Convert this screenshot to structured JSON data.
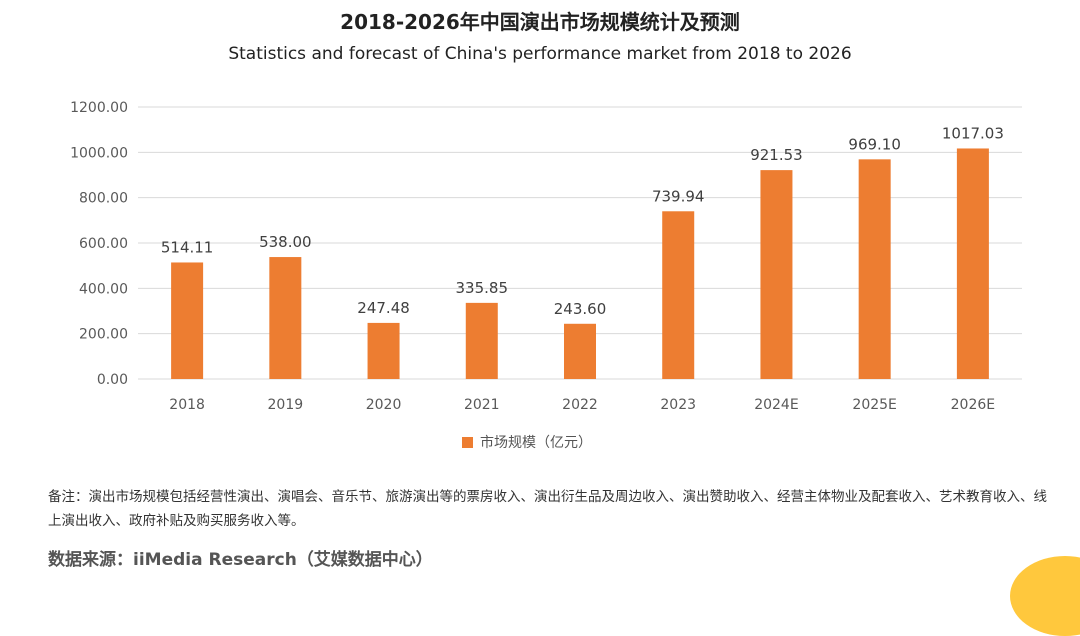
{
  "colors": {
    "bar": "#ED7D31",
    "grid": "#D9D9D9",
    "tick_text": "#595959",
    "label_text": "#404040",
    "corner_accent": "#FFC83D"
  },
  "chart_data": {
    "type": "bar",
    "title": "2018-2026年中国演出市场规模统计及预测",
    "subtitle": "Statistics and forecast of China's performance market from 2018 to 2026",
    "categories": [
      "2018",
      "2019",
      "2020",
      "2021",
      "2022",
      "2023",
      "2024E",
      "2025E",
      "2026E"
    ],
    "series": [
      {
        "name": "市场规模（亿元）",
        "values": [
          514.11,
          538.0,
          247.48,
          335.85,
          243.6,
          739.94,
          921.53,
          969.1,
          1017.03
        ],
        "value_labels": [
          "514.11",
          "538.00",
          "247.48",
          "335.85",
          "243.60",
          "739.94",
          "921.53",
          "969.10",
          "1017.03"
        ]
      }
    ],
    "ylim": [
      0,
      1200
    ],
    "yticks": [
      0,
      200,
      400,
      600,
      800,
      1000,
      1200
    ],
    "ytick_labels": [
      "0.00",
      "200.00",
      "400.00",
      "600.00",
      "800.00",
      "1000.00",
      "1200.00"
    ],
    "grid": true,
    "legend_position": "bottom",
    "xlabel": "",
    "ylabel": ""
  },
  "note": "备注：演出市场规模包括经营性演出、演唱会、音乐节、旅游演出等的票房收入、演出衍生品及周边收入、演出赞助收入、经营主体物业及配套收入、艺术教育收入、线上演出收入、政府补贴及购买服务收入等。",
  "source": "数据来源：iiMedia Research（艾媒数据中心）"
}
